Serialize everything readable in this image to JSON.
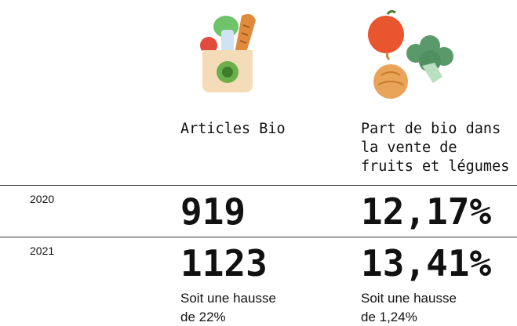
{
  "header": {
    "columns": [
      {
        "lines": [
          "Articles Bio"
        ]
      },
      {
        "lines": [
          "Part de bio dans",
          "la vente de",
          "fruits et légumes"
        ]
      }
    ]
  },
  "table": {
    "rows": [
      {
        "year": "2020",
        "cells": [
          "919",
          "12,17%"
        ],
        "notes": []
      },
      {
        "year": "2021",
        "cells": [
          "1123",
          "13,41%"
        ],
        "notes": [
          [
            "Soit une hausse",
            "de 22%"
          ],
          [
            "Soit une hausse",
            "de 1,24%"
          ]
        ]
      }
    ]
  }
}
